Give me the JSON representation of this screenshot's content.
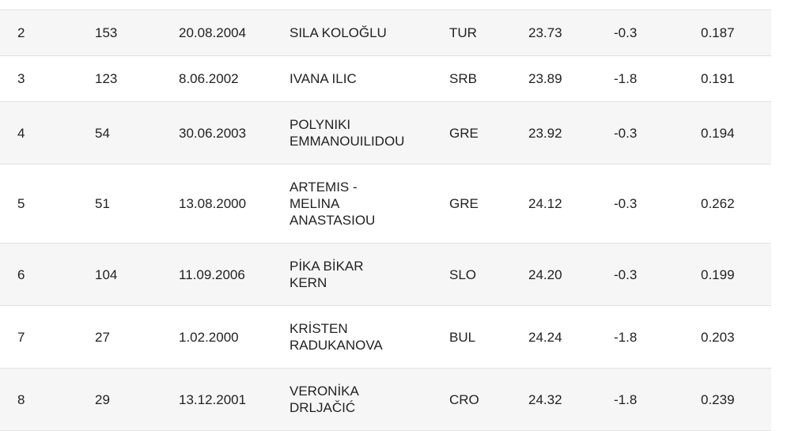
{
  "table": {
    "rows": [
      [
        "2",
        "153",
        "20.08.2004",
        "SILA KOLOĞLU",
        "TUR",
        "23.73",
        "-0.3",
        "0.187"
      ],
      [
        "3",
        "123",
        "8.06.2002",
        "IVANA ILIC",
        "SRB",
        "23.89",
        "-1.8",
        "0.191"
      ],
      [
        "4",
        "54",
        "30.06.2003",
        "POLYNIKI EMMANOUILIDOU",
        "GRE",
        "23.92",
        "-0.3",
        "0.194"
      ],
      [
        "5",
        "51",
        "13.08.2000",
        "ARTEMIS - MELINA ANASTASIOU",
        "GRE",
        "24.12",
        "-0.3",
        "0.262"
      ],
      [
        "6",
        "104",
        "11.09.2006",
        "PİKA BİKAR KERN",
        "SLO",
        "24.20",
        "-0.3",
        "0.199"
      ],
      [
        "7",
        "27",
        "1.02.2000",
        "KRİSTEN RADUKANOVA",
        "BUL",
        "24.24",
        "-1.8",
        "0.203"
      ],
      [
        "8",
        "29",
        "13.12.2001",
        "VERONİKA DRLJAČIĆ",
        "CRO",
        "24.32",
        "-1.8",
        "0.239"
      ]
    ]
  }
}
